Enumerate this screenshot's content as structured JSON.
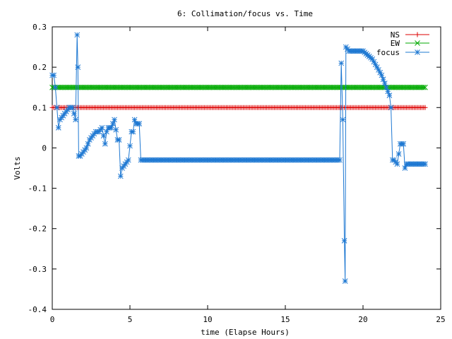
{
  "chart_data": {
    "type": "line",
    "title": "6: Collimation/focus vs. Time",
    "xlabel": "time (Elapse Hours)",
    "ylabel": "Volts",
    "xlim": [
      0,
      25
    ],
    "ylim": [
      -0.4,
      0.3
    ],
    "x_ticks": [
      "0",
      "5",
      "10",
      "15",
      "20",
      "25"
    ],
    "y_ticks": [
      "-0.4",
      "-0.3",
      "-0.2",
      "-0.1",
      "0",
      "0.1",
      "0.2",
      "0.3"
    ],
    "legend_position": "top-right",
    "grid": false,
    "series": [
      {
        "name": "NS",
        "color": "#dd0000",
        "marker": "plus",
        "x": [
          0,
          24
        ],
        "y": [
          0.1,
          0.1
        ],
        "constant": true
      },
      {
        "name": "EW",
        "color": "#00aa00",
        "marker": "cross",
        "x": [
          0,
          24
        ],
        "y": [
          0.15,
          0.15
        ],
        "constant": true
      },
      {
        "name": "focus",
        "color": "#1e78d2",
        "marker": "star",
        "x": [
          0.0,
          0.1,
          0.2,
          0.3,
          0.4,
          0.5,
          0.7,
          0.9,
          1.1,
          1.3,
          1.5,
          1.6,
          1.65,
          1.7,
          1.8,
          2.0,
          2.2,
          2.4,
          2.6,
          2.8,
          3.0,
          3.2,
          3.4,
          3.5,
          3.6,
          3.8,
          4.0,
          4.2,
          4.3,
          4.4,
          4.5,
          4.7,
          4.9,
          5.1,
          5.2,
          5.3,
          5.4,
          5.6,
          5.7,
          18.5,
          18.6,
          18.7,
          18.8,
          18.85,
          18.9,
          19.1,
          19.5,
          20.0,
          20.3,
          20.6,
          20.9,
          21.2,
          21.5,
          21.7,
          21.8,
          21.9,
          22.0,
          22.2,
          22.4,
          22.6,
          22.7,
          22.8,
          23.2,
          23.6,
          24.0
        ],
        "y": [
          0.18,
          0.18,
          0.15,
          0.1,
          0.05,
          0.07,
          0.08,
          0.09,
          0.1,
          0.1,
          0.07,
          0.28,
          0.2,
          -0.02,
          -0.02,
          -0.01,
          0.0,
          0.02,
          0.03,
          0.04,
          0.04,
          0.05,
          0.01,
          0.04,
          0.05,
          0.05,
          0.07,
          0.02,
          0.02,
          -0.07,
          -0.05,
          -0.04,
          -0.03,
          0.04,
          0.04,
          0.07,
          0.06,
          0.06,
          -0.03,
          -0.03,
          0.21,
          0.07,
          -0.23,
          -0.33,
          0.25,
          0.24,
          0.24,
          0.24,
          0.23,
          0.22,
          0.2,
          0.18,
          0.15,
          0.13,
          0.1,
          -0.03,
          -0.03,
          -0.04,
          0.01,
          0.01,
          -0.05,
          -0.04,
          -0.04,
          -0.04,
          -0.04
        ]
      }
    ]
  }
}
